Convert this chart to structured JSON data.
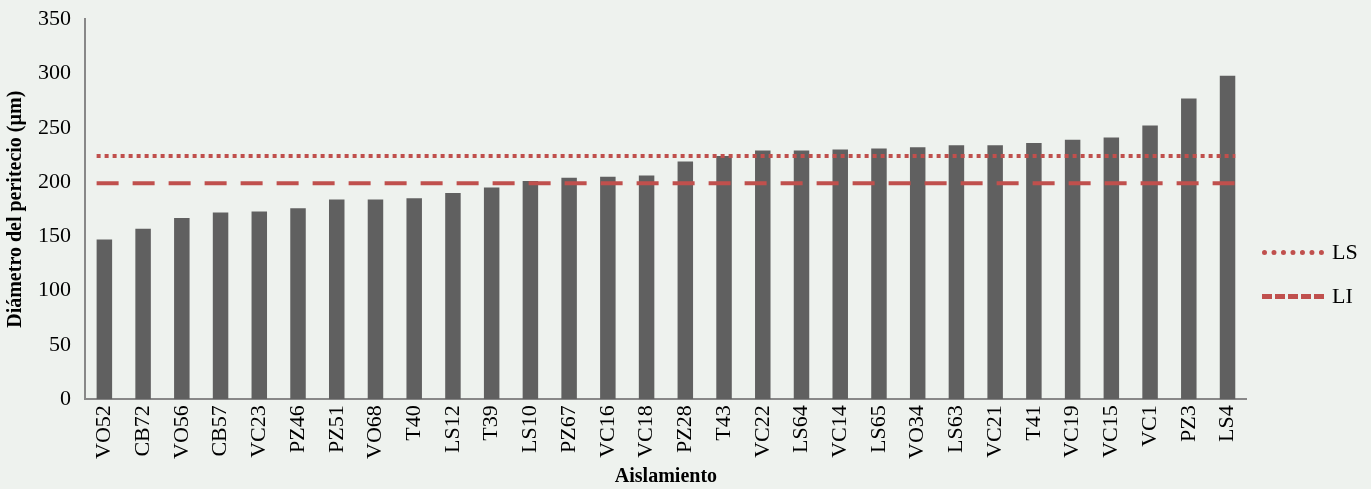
{
  "chart_data": {
    "type": "bar",
    "xlabel": "Aislamiento",
    "ylabel": "Diámetro del peritecio (µm)",
    "categories": [
      "VO52",
      "CB72",
      "VO56",
      "CB57",
      "VC23",
      "PZ46",
      "PZ51",
      "VO68",
      "T40",
      "LS12",
      "T39",
      "LS10",
      "PZ67",
      "VC16",
      "VC18",
      "PZ28",
      "T43",
      "VC22",
      "LS64",
      "VC14",
      "LS65",
      "VO34",
      "LS63",
      "VC21",
      "T41",
      "VC19",
      "VC15",
      "VC1",
      "PZ3",
      "LS4"
    ],
    "values": [
      147,
      157,
      167,
      172,
      173,
      176,
      184,
      184,
      185,
      190,
      195,
      201,
      204,
      205,
      206,
      219,
      224,
      229,
      229,
      230,
      231,
      232,
      234,
      234,
      236,
      239,
      241,
      252,
      277,
      298
    ],
    "color": "#606060",
    "ylim": [
      0,
      350
    ],
    "yticks": [
      0,
      50,
      100,
      150,
      200,
      250,
      300,
      350
    ],
    "grid": false,
    "legend": "right",
    "ref_lines": [
      {
        "axis": "y",
        "value": 224,
        "label": "LS",
        "color": "#c0504d",
        "line_style": "dotted"
      },
      {
        "axis": "y",
        "value": 199,
        "label": "LI",
        "color": "#c0504d",
        "line_style": "dashed"
      }
    ]
  }
}
